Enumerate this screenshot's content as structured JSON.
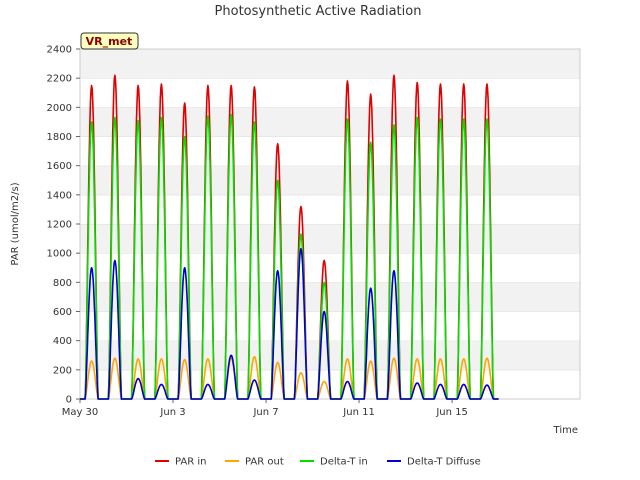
{
  "chart_data": {
    "type": "line",
    "title": "Photosynthetic Active Radiation",
    "xlabel": "Time",
    "ylabel": "PAR (umol/m2/s)",
    "ylim": [
      0,
      2400
    ],
    "xlim": [
      0,
      21.5
    ],
    "yticks": [
      0,
      200,
      400,
      600,
      800,
      1000,
      1200,
      1400,
      1600,
      1800,
      2000,
      2200,
      2400
    ],
    "xticks": [
      {
        "day": 0,
        "label": "May 30"
      },
      {
        "day": 4,
        "label": "Jun 3"
      },
      {
        "day": 8,
        "label": "Jun 7"
      },
      {
        "day": 12,
        "label": "Jun 11"
      },
      {
        "day": 16,
        "label": "Jun 15"
      }
    ],
    "badge": "VR_met",
    "grid_bands": true,
    "legend_position": "bottom-center",
    "daily_peaks": {
      "days": [
        0,
        1,
        2,
        3,
        4,
        5,
        6,
        7,
        8,
        9,
        10,
        11,
        12,
        13,
        14,
        15,
        16,
        17
      ],
      "series": [
        {
          "name": "PAR in",
          "color": "#e00000",
          "values": [
            2150,
            2220,
            2150,
            2160,
            2030,
            2150,
            2150,
            2140,
            1750,
            1320,
            950,
            2180,
            2090,
            2220,
            2170,
            2160,
            2160,
            2160
          ]
        },
        {
          "name": "PAR out",
          "color": "#ffa500",
          "values": [
            260,
            280,
            275,
            275,
            270,
            275,
            280,
            290,
            250,
            180,
            120,
            275,
            260,
            280,
            275,
            275,
            275,
            280
          ]
        },
        {
          "name": "Delta-T in",
          "color": "#00e000",
          "values": [
            1900,
            1930,
            1910,
            1930,
            1800,
            1940,
            1950,
            1900,
            1500,
            1130,
            800,
            1920,
            1760,
            1880,
            1930,
            1920,
            1920,
            1920
          ]
        },
        {
          "name": "Delta-T Diffuse",
          "color": "#0000cc",
          "values": [
            900,
            950,
            140,
            100,
            900,
            100,
            300,
            130,
            880,
            1030,
            600,
            120,
            760,
            880,
            110,
            100,
            100,
            95
          ]
        }
      ]
    }
  }
}
